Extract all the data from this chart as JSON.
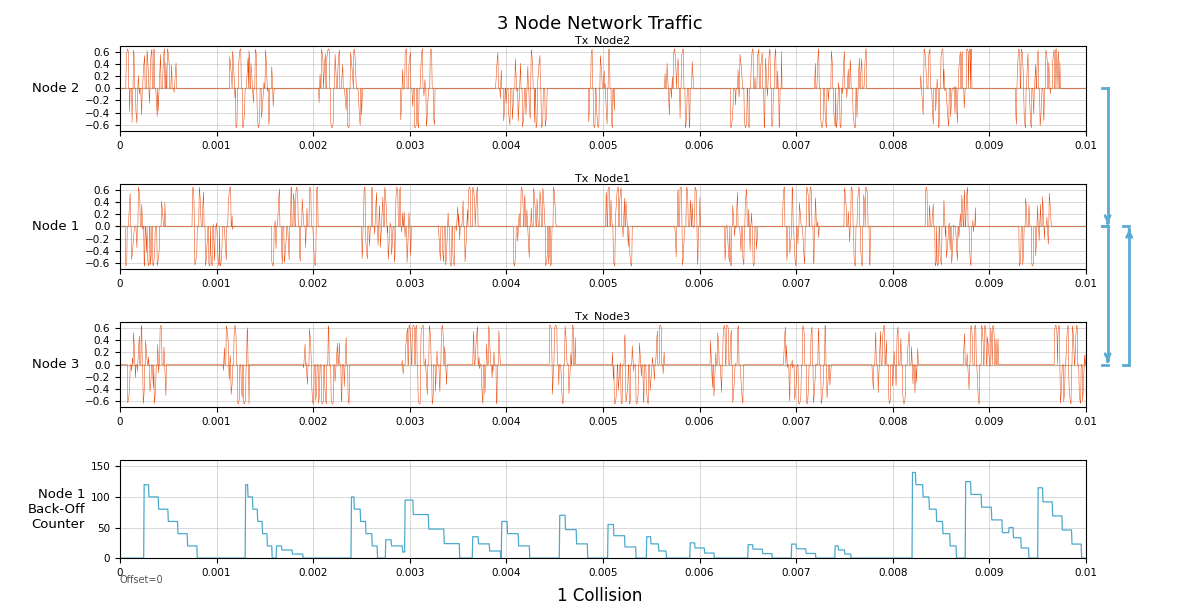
{
  "title": "3 Node Network Traffic",
  "subtitle": "1 Collision",
  "node_labels": [
    "Node 2",
    "Node 1",
    "Node 3"
  ],
  "node_titles": [
    "Tx_Node2",
    "Tx_Node1",
    "Tx_Node3"
  ],
  "backoff_label": "Node 1\nBack-Off\nCounter",
  "signal_color": "#E84000",
  "backoff_color": "#4DAACC",
  "zero_line_color": "#C8A882",
  "background_color": "#FFFFFF",
  "grid_color": "#BBBBBB",
  "xlim": [
    0,
    0.01
  ],
  "xticks": [
    0,
    0.001,
    0.002,
    0.003,
    0.004,
    0.005,
    0.006,
    0.007,
    0.008,
    0.009,
    0.01
  ],
  "signal_ylim": [
    -0.7,
    0.7
  ],
  "signal_yticks": [
    -0.6,
    -0.4,
    -0.2,
    0,
    0.2,
    0.4,
    0.6
  ],
  "backoff_ylim": [
    0,
    160
  ],
  "backoff_yticks": [
    0,
    50,
    100,
    150
  ],
  "arrow_color": "#5BAAD4"
}
